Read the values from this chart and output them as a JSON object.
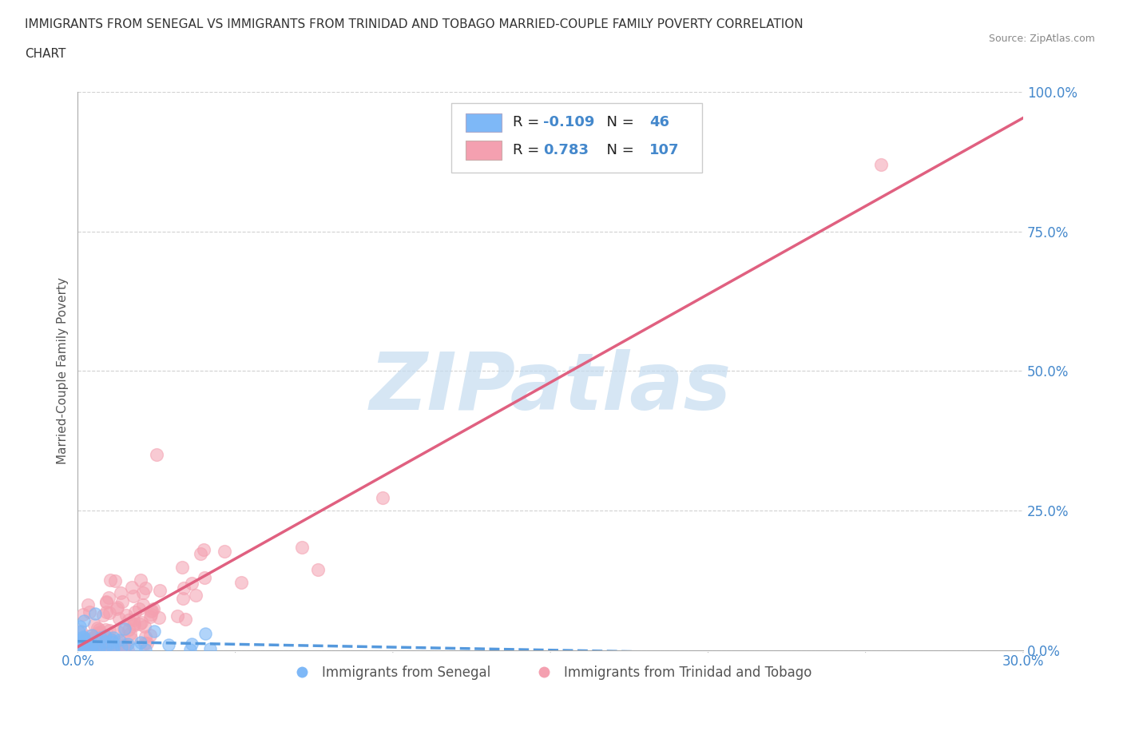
{
  "title_line1": "IMMIGRANTS FROM SENEGAL VS IMMIGRANTS FROM TRINIDAD AND TOBAGO MARRIED-COUPLE FAMILY POVERTY CORRELATION",
  "title_line2": "CHART",
  "source": "Source: ZipAtlas.com",
  "ylabel": "Married-Couple Family Poverty",
  "xlim": [
    0,
    0.3
  ],
  "ylim": [
    0,
    1.0
  ],
  "xticks": [
    0.0,
    0.05,
    0.1,
    0.15,
    0.2,
    0.25,
    0.3
  ],
  "xticklabels": [
    "0.0%",
    "",
    "",
    "",
    "",
    "",
    "30.0%"
  ],
  "yticks": [
    0.0,
    0.25,
    0.5,
    0.75,
    1.0
  ],
  "yticklabels": [
    "0.0%",
    "25.0%",
    "50.0%",
    "75.0%",
    "100.0%"
  ],
  "legend1_label": "Immigrants from Senegal",
  "legend2_label": "Immigrants from Trinidad and Tobago",
  "R1": -0.109,
  "N1": 46,
  "R2": 0.783,
  "N2": 107,
  "color1": "#7EB8F7",
  "color2": "#F4A0B0",
  "line_color1": "#5599DD",
  "line_color2": "#E06080",
  "watermark_text": "ZIPatlas",
  "background_color": "#FFFFFF",
  "grid_color": "#CCCCCC",
  "seed1": 42,
  "seed2": 123
}
